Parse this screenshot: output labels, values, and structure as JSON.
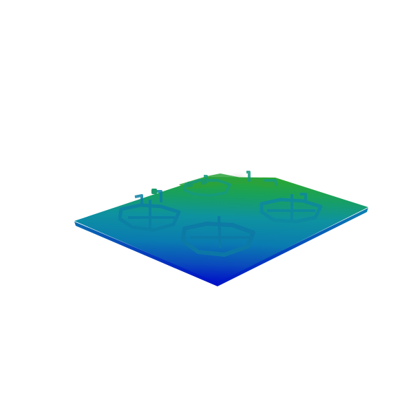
{
  "render": {
    "background": "#ffffff",
    "colormap": [
      "#0010c8",
      "#0a4fb0",
      "#0a78a8",
      "#10909a",
      "#1fa05a",
      "#34b024",
      "#e6e6e6"
    ],
    "subject": "cooktop-plate-depth-render",
    "burner_count": 4,
    "burner_color": "#0d7aa5",
    "rear_edge_color": "#2aa830",
    "front_corner_color": "#0008c8"
  }
}
